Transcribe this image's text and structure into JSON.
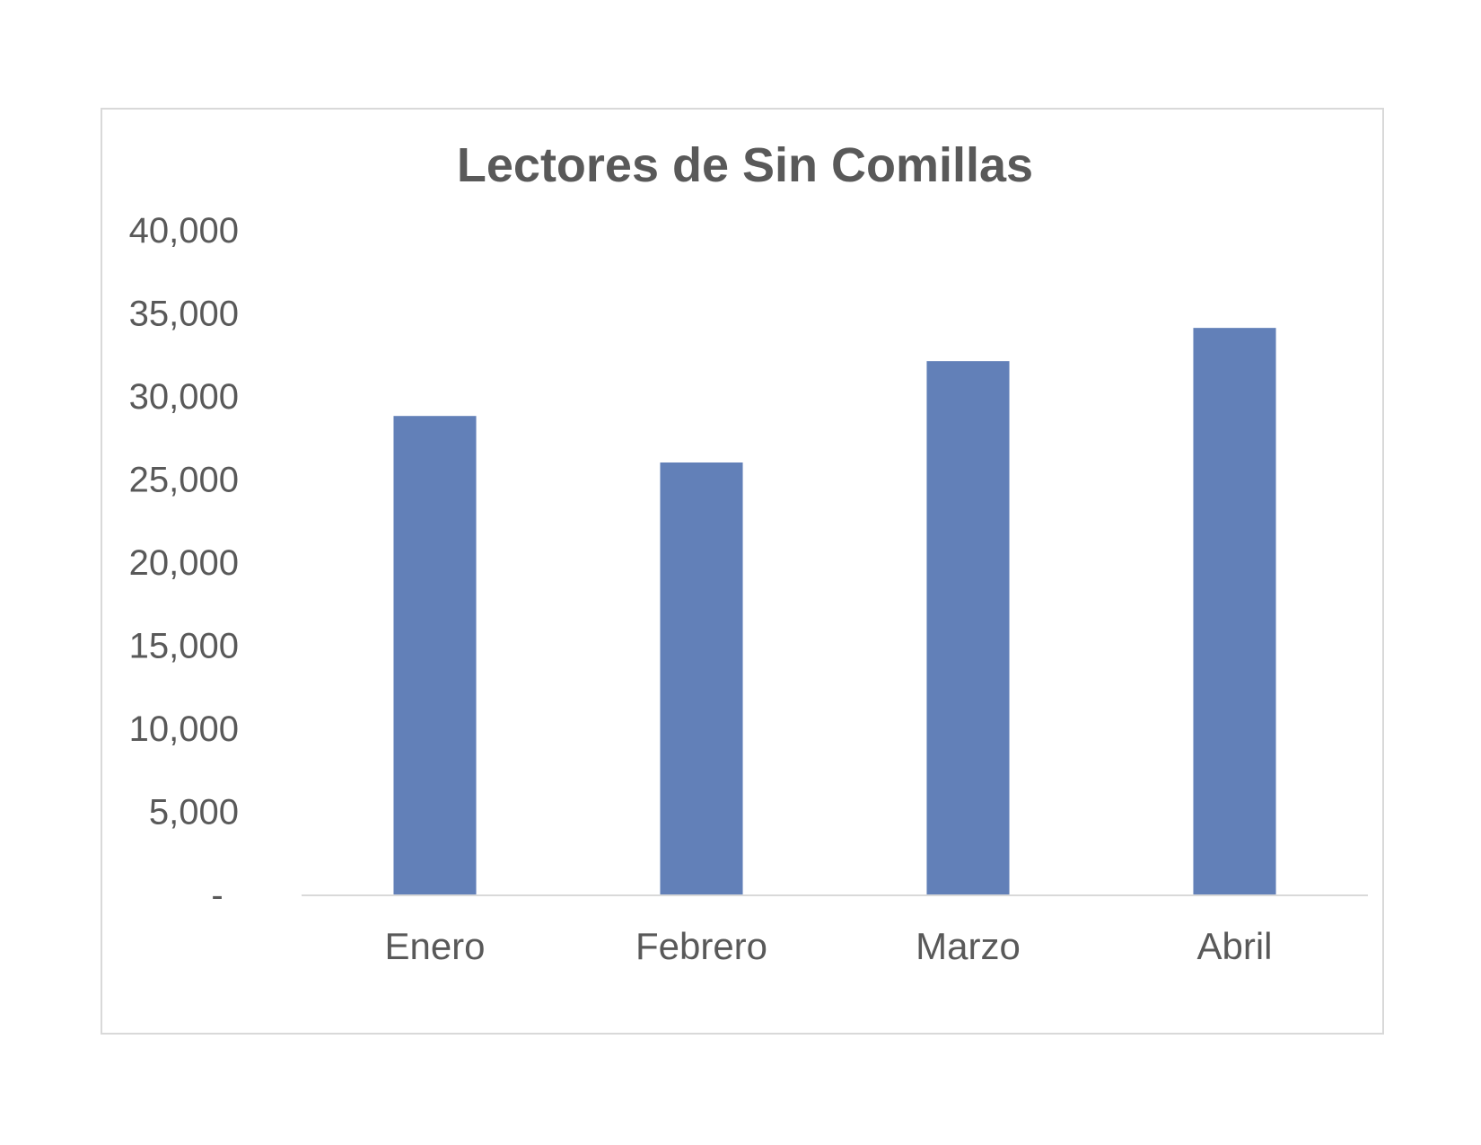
{
  "chart_data": {
    "type": "bar",
    "title": "Lectores de Sin Comillas",
    "xlabel": "",
    "ylabel": "",
    "categories": [
      "Enero",
      "Febrero",
      "Marzo",
      "Abril"
    ],
    "values": [
      28800,
      26000,
      32100,
      34100
    ],
    "ylim": [
      0,
      40000
    ],
    "yticks": [
      {
        "value": 0,
        "label": "-"
      },
      {
        "value": 5000,
        "label": "5,000"
      },
      {
        "value": 10000,
        "label": "10,000"
      },
      {
        "value": 15000,
        "label": "15,000"
      },
      {
        "value": 20000,
        "label": "20,000"
      },
      {
        "value": 25000,
        "label": "25,000"
      },
      {
        "value": 30000,
        "label": "30,000"
      },
      {
        "value": 35000,
        "label": "35,000"
      },
      {
        "value": 40000,
        "label": "40,000"
      }
    ],
    "grid": false,
    "legend": "none",
    "bar_color": "#6280b8",
    "axis_color": "#d9d9d9"
  }
}
